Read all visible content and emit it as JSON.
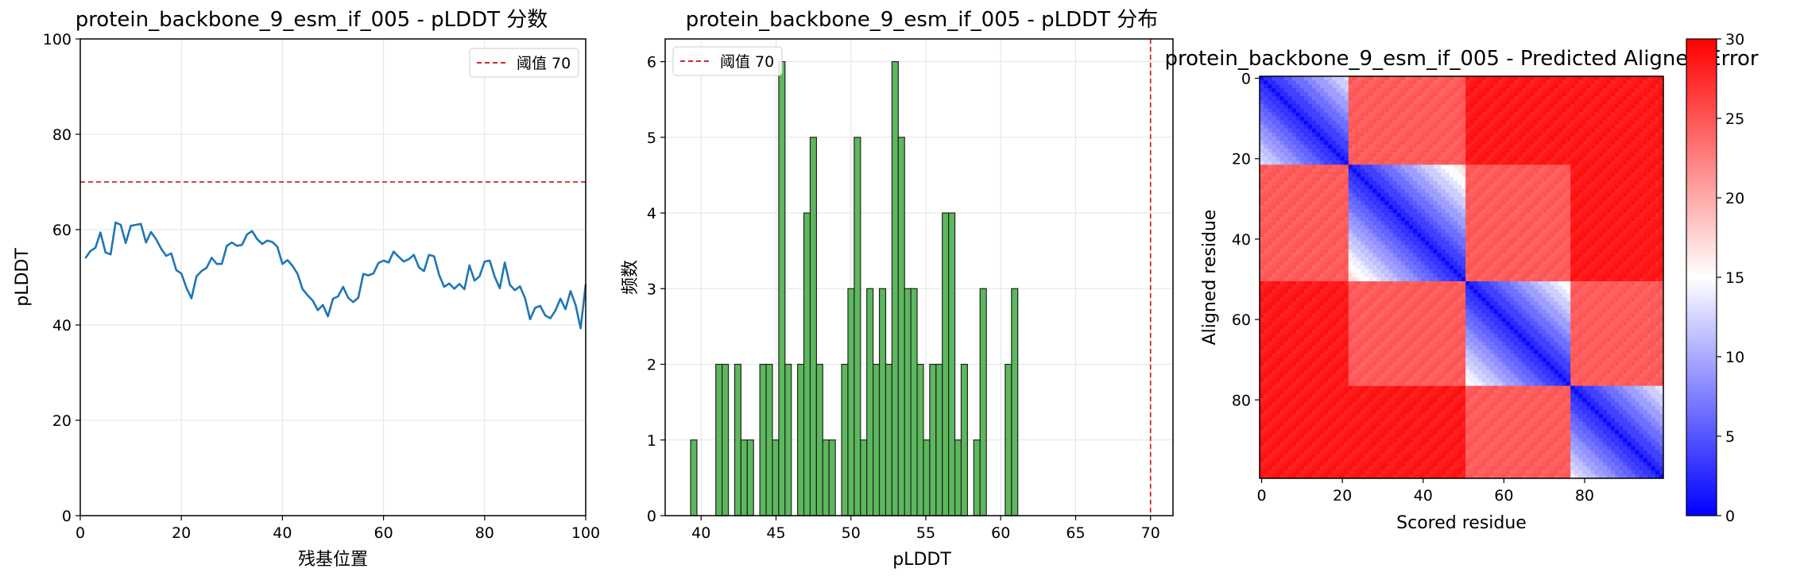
{
  "chart_data": [
    {
      "type": "line",
      "title": "protein_backbone_9_esm_if_005 - pLDDT 分数",
      "xlabel": "残基位置",
      "ylabel": "pLDDT",
      "xlim": [
        0,
        100
      ],
      "ylim": [
        0,
        100
      ],
      "xticks": [
        0,
        20,
        40,
        60,
        80,
        100
      ],
      "yticks": [
        0,
        20,
        40,
        60,
        80,
        100
      ],
      "grid": true,
      "legend": "top-right",
      "threshold": {
        "value": 70,
        "label": "阈值 70",
        "color": "#d62728"
      },
      "series": [
        {
          "color": "#1f77b4",
          "x": [
            1,
            2,
            3,
            4,
            5,
            6,
            7,
            8,
            9,
            10,
            11,
            12,
            13,
            14,
            15,
            16,
            17,
            18,
            19,
            20,
            21,
            22,
            23,
            24,
            25,
            26,
            27,
            28,
            29,
            30,
            31,
            32,
            33,
            34,
            35,
            36,
            37,
            38,
            39,
            40,
            41,
            42,
            43,
            44,
            45,
            46,
            47,
            48,
            49,
            50,
            51,
            52,
            53,
            54,
            55,
            56,
            57,
            58,
            59,
            60,
            61,
            62,
            63,
            64,
            65,
            66,
            67,
            68,
            69,
            70,
            71,
            72,
            73,
            74,
            75,
            76,
            77,
            78,
            79,
            80,
            81,
            82,
            83,
            84,
            85,
            86,
            87,
            88,
            89,
            90,
            91,
            92,
            93,
            94,
            95,
            96,
            97,
            98,
            99,
            100
          ],
          "values": [
            54,
            55.5,
            56.2,
            59.4,
            55.2,
            54.8,
            61.5,
            61,
            57.2,
            60.8,
            61,
            61.2,
            57.3,
            59.5,
            58,
            56,
            54.5,
            55,
            51.5,
            50.8,
            47.8,
            45.6,
            50.2,
            51.3,
            52,
            54.1,
            52.8,
            52.8,
            56.6,
            57.3,
            56.6,
            56.8,
            59,
            59.7,
            58,
            57,
            57.7,
            57.4,
            56.4,
            52.8,
            53.6,
            52.4,
            50.7,
            47.5,
            46.2,
            45.1,
            43.1,
            44.2,
            41.8,
            45.5,
            46,
            48,
            45.7,
            44.8,
            45.7,
            50.7,
            50.4,
            50.8,
            53,
            53.5,
            53.1,
            55.4,
            54.3,
            53.3,
            53.8,
            54.7,
            52.1,
            51.3,
            54.7,
            54.4,
            50.5,
            48,
            48.7,
            47.6,
            48.6,
            47.5,
            52.5,
            49.3,
            50.2,
            53.3,
            53.5,
            50.1,
            47.7,
            53.1,
            48.4,
            47.3,
            48.1,
            45.6,
            41.2,
            43.6,
            44,
            42,
            41.4,
            43,
            45.5,
            43.3,
            47.1,
            44.2,
            39.3,
            48.5
          ]
        }
      ]
    },
    {
      "type": "bar",
      "title": "protein_backbone_9_esm_if_005 - pLDDT 分布",
      "xlabel": "pLDDT",
      "ylabel": "频数",
      "xlim": [
        37.6,
        71.5
      ],
      "ylim": [
        0,
        6.3
      ],
      "xticks": [
        40,
        45,
        50,
        55,
        60,
        65,
        70
      ],
      "yticks": [
        0,
        1,
        2,
        3,
        4,
        5,
        6
      ],
      "grid": true,
      "legend": "top-left",
      "threshold": {
        "value": 70,
        "label": "阈值 70",
        "color": "#d62728"
      },
      "bar_color": "#5cb85c",
      "bin_edges": [
        39.3,
        39.72,
        40.14,
        40.56,
        40.98,
        41.4,
        41.82,
        42.24,
        42.66,
        43.08,
        43.5,
        43.92,
        44.34,
        44.76,
        45.18,
        45.6,
        46.02,
        46.44,
        46.86,
        47.28,
        47.7,
        48.12,
        48.54,
        48.96,
        49.38,
        49.8,
        50.22,
        50.64,
        51.06,
        51.48,
        51.9,
        52.32,
        52.74,
        53.16,
        53.58,
        54.0,
        54.42,
        54.84,
        55.26,
        55.68,
        56.1,
        56.52,
        56.94,
        57.36,
        57.78,
        58.2,
        58.62,
        59.04,
        59.46,
        59.88,
        60.3,
        60.72,
        61.14,
        61.56
      ],
      "values": [
        1,
        0,
        0,
        0,
        2,
        2,
        0,
        2,
        1,
        1,
        0,
        2,
        2,
        1,
        6,
        2,
        0,
        2,
        4,
        5,
        2,
        1,
        1,
        0,
        2,
        3,
        5,
        1,
        3,
        2,
        3,
        2,
        6,
        5,
        3,
        3,
        2,
        1,
        2,
        2,
        4,
        4,
        1,
        2,
        0,
        1,
        3,
        0,
        0,
        0,
        2,
        3,
        0
      ]
    },
    {
      "type": "heatmap",
      "title": "protein_backbone_9_esm_if_005 - Predicted Aligned Error",
      "xlabel": "Scored residue",
      "ylabel": "Aligned residue",
      "size": 100,
      "xticks": [
        0,
        20,
        40,
        60,
        80
      ],
      "yticks": [
        0,
        20,
        40,
        60,
        80
      ],
      "colormap": "bwr",
      "vmin": 0,
      "vmax": 30,
      "colorbar_ticks": [
        0,
        5,
        10,
        15,
        20,
        25,
        30
      ],
      "blocks": [
        {
          "from": 0,
          "to": 21,
          "error": 20,
          "diagonal": 0.5
        },
        {
          "from": 22,
          "to": 50,
          "error": 22,
          "diagonal": 0.5
        },
        {
          "from": 51,
          "to": 76,
          "error": 23,
          "diagonal": 0.5
        },
        {
          "from": 77,
          "to": 99,
          "error": 24,
          "diagonal": 0.5
        }
      ],
      "inter_block_error": 28
    }
  ]
}
